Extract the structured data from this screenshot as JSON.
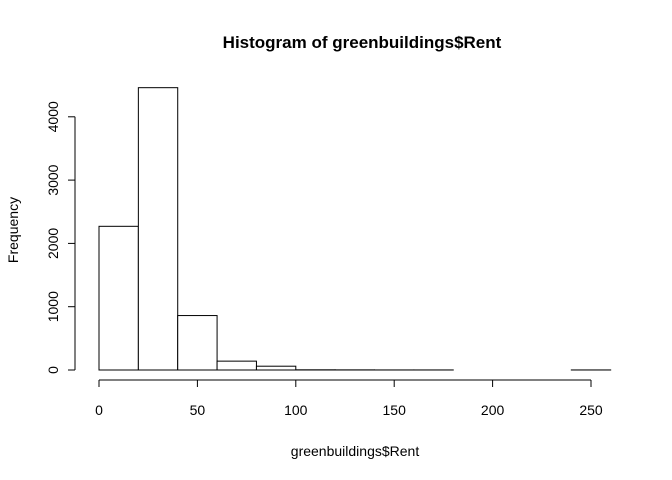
{
  "chart_data": {
    "type": "bar",
    "histogram": true,
    "title": "Histogram of greenbuildings$Rent",
    "xlabel": "greenbuildings$Rent",
    "ylabel": "Frequency",
    "bins": [
      {
        "from": 0,
        "to": 20,
        "count": 2270
      },
      {
        "from": 20,
        "to": 40,
        "count": 4460
      },
      {
        "from": 40,
        "to": 60,
        "count": 860
      },
      {
        "from": 60,
        "to": 80,
        "count": 140
      },
      {
        "from": 80,
        "to": 100,
        "count": 60
      },
      {
        "from": 100,
        "to": 120,
        "count": 3
      },
      {
        "from": 120,
        "to": 140,
        "count": 2
      },
      {
        "from": 140,
        "to": 160,
        "count": 1
      },
      {
        "from": 160,
        "to": 180,
        "count": 1
      },
      {
        "from": 180,
        "to": 200,
        "count": 0
      },
      {
        "from": 200,
        "to": 220,
        "count": 0
      },
      {
        "from": 220,
        "to": 240,
        "count": 0
      },
      {
        "from": 240,
        "to": 260,
        "count": 1
      }
    ],
    "xticks": [
      "0",
      "50",
      "100",
      "150",
      "200",
      "250"
    ],
    "xtick_values": [
      0,
      50,
      100,
      150,
      200,
      250
    ],
    "yticks": [
      "0",
      "1000",
      "2000",
      "3000",
      "4000"
    ],
    "ytick_values": [
      0,
      1000,
      2000,
      3000,
      4000
    ],
    "xlim": [
      0,
      260
    ],
    "ylim": [
      0,
      4460
    ],
    "grid": false,
    "legend": "none",
    "colors": {
      "bar_fill": "#ffffff",
      "bar_stroke": "#000000"
    }
  }
}
